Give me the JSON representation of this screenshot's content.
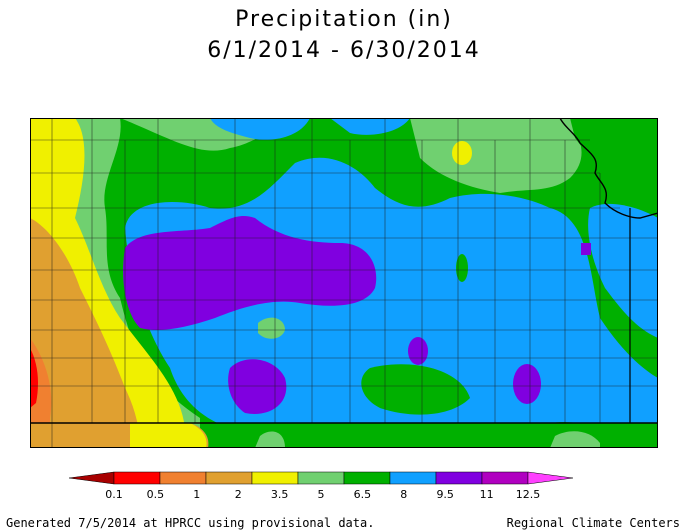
{
  "title": "Precipitation (in)",
  "subtitle": "6/1/2014 - 6/30/2014",
  "legend": {
    "ticks": [
      "0.1",
      "0.5",
      "1",
      "2",
      "3.5",
      "5",
      "6.5",
      "8",
      "9.5",
      "11",
      "12.5"
    ],
    "colors": [
      "#a80000",
      "#ff0000",
      "#f08030",
      "#e0a030",
      "#f0f000",
      "#70d070",
      "#00b000",
      "#10a0ff",
      "#8000e0",
      "#b000c0",
      "#ff40ff"
    ]
  },
  "footer": {
    "left": "Generated 7/5/2014 at HPRCC using provisional data.",
    "right": "Regional Climate Centers"
  }
}
